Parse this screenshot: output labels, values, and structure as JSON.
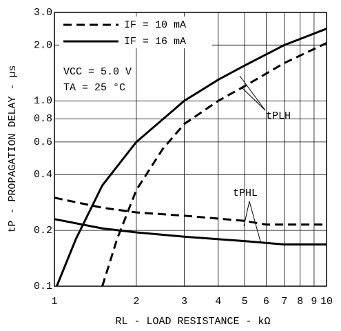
{
  "chart_data": {
    "type": "line",
    "xlabel": "RL - LOAD RESISTANCE - kΩ",
    "ylabel": "tP - PROPAGATION DELAY - µs",
    "log_x": true,
    "log_y": true,
    "grid": true,
    "legend": "upper left",
    "xlim": [
      1,
      10
    ],
    "ylim": [
      0.1,
      3.0
    ],
    "xticks": [
      1,
      2,
      3,
      4,
      5,
      6,
      7,
      8,
      9,
      10
    ],
    "yticks": [
      0.1,
      0.2,
      0.4,
      0.6,
      0.8,
      {
        "value": 1,
        "label": "1.0"
      },
      {
        "value": 2,
        "label": "2.0"
      },
      {
        "value": 3,
        "label": "3.0"
      }
    ],
    "annotations": [
      "VCC = 5.0 V",
      "TA = 25 °C",
      "tPLH",
      "tPHL"
    ],
    "series": [
      {
        "name": "IF = 10 mA",
        "group": "tPLH",
        "color": "#000000",
        "dash": true,
        "x": [
          1.5,
          1.7,
          2,
          2.5,
          3,
          4,
          5,
          7,
          10
        ],
        "values": [
          0.1,
          0.18,
          0.33,
          0.55,
          0.75,
          1.0,
          1.2,
          1.6,
          2.05
        ]
      },
      {
        "name": "IF = 16 mA",
        "group": "tPLH",
        "color": "#000000",
        "dash": false,
        "x": [
          1.02,
          1.2,
          1.5,
          2,
          3,
          4,
          5,
          7,
          10
        ],
        "values": [
          0.1,
          0.18,
          0.35,
          0.6,
          1.0,
          1.3,
          1.55,
          2.0,
          2.45
        ]
      },
      {
        "name": "IF = 10 mA",
        "group": "tPHL",
        "color": "#000000",
        "dash": true,
        "x": [
          1,
          1.5,
          2,
          3,
          5,
          6,
          10
        ],
        "values": [
          0.3,
          0.265,
          0.25,
          0.24,
          0.225,
          0.215,
          0.215
        ]
      },
      {
        "name": "IF = 16 mA",
        "group": "tPHL",
        "color": "#000000",
        "dash": false,
        "x": [
          1,
          1.5,
          2,
          3,
          5,
          7,
          10
        ],
        "values": [
          0.23,
          0.205,
          0.195,
          0.185,
          0.175,
          0.168,
          0.168
        ]
      }
    ]
  }
}
